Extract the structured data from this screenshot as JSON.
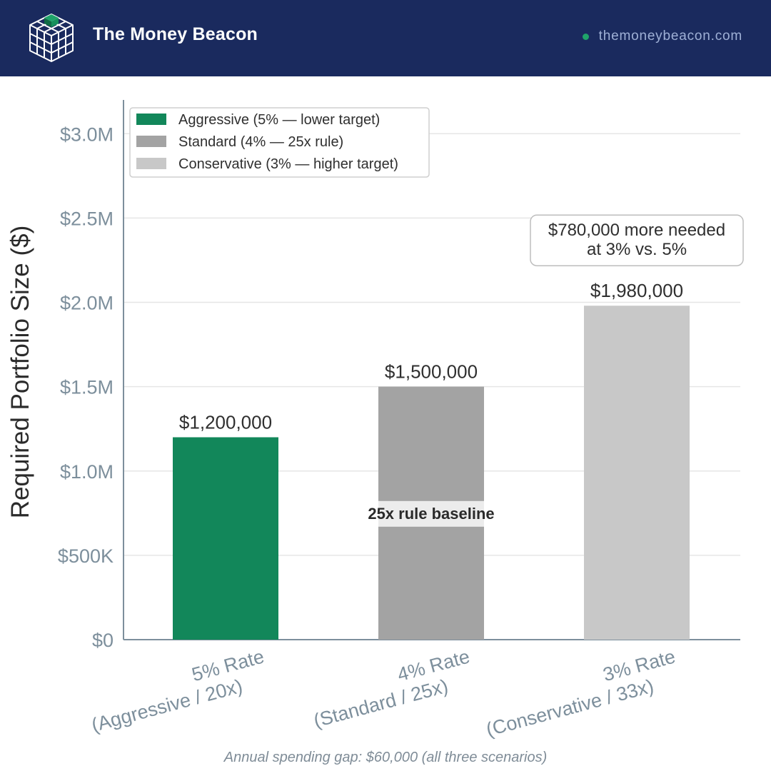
{
  "header": {
    "brand_name": "The Money Beacon",
    "site_url": "themoneybeacon.com",
    "logo_icon": "cube-grid-icon",
    "background_color": "#1a2a5e",
    "accent_color": "#1fa36a"
  },
  "chart_data": {
    "type": "bar",
    "categories": [
      "5% Rate\n(Aggressive / 20x)",
      "4% Rate\n(Standard / 25x)",
      "3% Rate\n(Conservative / 33x)"
    ],
    "values": [
      1200000,
      1500000,
      1980000
    ],
    "value_labels": [
      "$1,200,000",
      "$1,500,000",
      "$1,980,000"
    ],
    "bar_colors": [
      "#12875a",
      "#a3a3a3",
      "#c8c8c8"
    ],
    "title": "",
    "xlabel": "",
    "ylabel": "Required Portfolio Size ($)",
    "ylim": [
      0,
      3200000
    ],
    "yticks": [
      0,
      500000,
      1000000,
      1500000,
      2000000,
      2500000,
      3000000
    ],
    "ytick_labels": [
      "$0",
      "$500K",
      "$1.0M",
      "$1.5M",
      "$2.0M",
      "$2.5M",
      "$3.0M"
    ],
    "grid": true,
    "legend_position": "top-left",
    "legend": [
      {
        "label": "Aggressive (5% — lower target)",
        "color": "#12875a"
      },
      {
        "label": "Standard (4% — 25x rule)",
        "color": "#a3a3a3"
      },
      {
        "label": "Conservative (3% — higher target)",
        "color": "#c8c8c8"
      }
    ],
    "annotations": {
      "baseline_label": "25x rule baseline",
      "callout_lines": [
        "$780,000 more needed",
        "at 3% vs. 5%"
      ]
    }
  },
  "footnote": "Annual spending gap: $60,000 (all three scenarios)"
}
